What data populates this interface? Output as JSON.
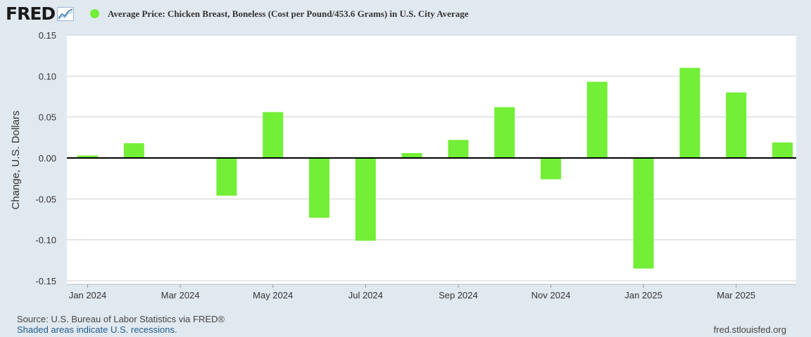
{
  "header": {
    "logo_text": "FRED",
    "series_title": "Average Price: Chicken Breast, Boneless (Cost per Pound/453.6 Grams) in U.S. City Average"
  },
  "colors": {
    "bar": "#72ef36",
    "background": "#e1e9f0",
    "plot_background": "#ffffff",
    "grid": "#cfcfcf",
    "zero_line": "#000000"
  },
  "chart_data": {
    "type": "bar",
    "title": "Average Price: Chicken Breast, Boneless (Cost per Pound/453.6 Grams) in U.S. City Average",
    "xlabel": "",
    "ylabel": "Change, U.S. Dollars",
    "ylim": [
      -0.15,
      0.15
    ],
    "grid": true,
    "legend": "top-left",
    "yticks": [
      0.15,
      0.1,
      0.05,
      0.0,
      -0.05,
      -0.1,
      -0.15
    ],
    "ytick_labels": [
      "0.15",
      "0.10",
      "0.05",
      "0.00",
      "-0.05",
      "-0.10",
      "-0.15"
    ],
    "xtick_labels": [
      {
        "label": "Jan 2024",
        "index": 0
      },
      {
        "label": "Mar 2024",
        "index": 2
      },
      {
        "label": "May 2024",
        "index": 4
      },
      {
        "label": "Jul 2024",
        "index": 6
      },
      {
        "label": "Sep 2024",
        "index": 8
      },
      {
        "label": "Nov 2024",
        "index": 10
      },
      {
        "label": "Jan 2025",
        "index": 12
      },
      {
        "label": "Mar 2025",
        "index": 14
      }
    ],
    "categories": [
      "Jan 2024",
      "Feb 2024",
      "Mar 2024",
      "Apr 2024",
      "May 2024",
      "Jun 2024",
      "Jul 2024",
      "Aug 2024",
      "Sep 2024",
      "Oct 2024",
      "Nov 2024",
      "Dec 2024",
      "Jan 2025",
      "Feb 2025",
      "Mar 2025",
      "Apr 2025"
    ],
    "values": [
      0.003,
      0.018,
      0.0,
      -0.046,
      0.056,
      -0.073,
      -0.101,
      0.006,
      0.022,
      0.062,
      -0.026,
      0.093,
      -0.135,
      0.11,
      0.08,
      0.019
    ]
  },
  "footer": {
    "source": "Source: U.S. Bureau of Labor Statistics via FRED®",
    "recession_note": "Shaded areas indicate U.S. recessions.",
    "url": "fred.stlouisfed.org"
  }
}
